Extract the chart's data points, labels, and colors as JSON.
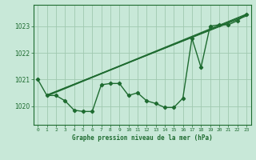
{
  "title": "Graphe pression niveau de la mer (hPa)",
  "xlabel_hours": [
    0,
    1,
    2,
    3,
    4,
    5,
    6,
    7,
    8,
    9,
    10,
    11,
    12,
    13,
    14,
    15,
    16,
    17,
    18,
    19,
    20,
    21,
    22,
    23
  ],
  "ylim": [
    1019.3,
    1023.8
  ],
  "yticks": [
    1020,
    1021,
    1022,
    1023
  ],
  "background_color": "#c8e8d8",
  "grid_color": "#a0c8b0",
  "line_color": "#1e6b30",
  "main_line": [
    1021.0,
    1020.4,
    1020.4,
    1020.2,
    1019.85,
    1019.8,
    1019.8,
    1020.8,
    1020.85,
    1020.85,
    1020.4,
    1020.5,
    1020.2,
    1020.1,
    1019.95,
    1019.95,
    1020.3,
    1022.55,
    1021.45,
    1023.0,
    1023.05,
    1023.05,
    1023.2,
    1023.45
  ],
  "trend_lines": [
    [
      [
        1,
        1020.4
      ],
      [
        23,
        1023.45
      ]
    ],
    [
      [
        1,
        1020.38
      ],
      [
        23,
        1023.42
      ]
    ],
    [
      [
        1,
        1020.42
      ],
      [
        23,
        1023.38
      ]
    ]
  ],
  "figsize": [
    3.2,
    2.0
  ],
  "dpi": 100
}
